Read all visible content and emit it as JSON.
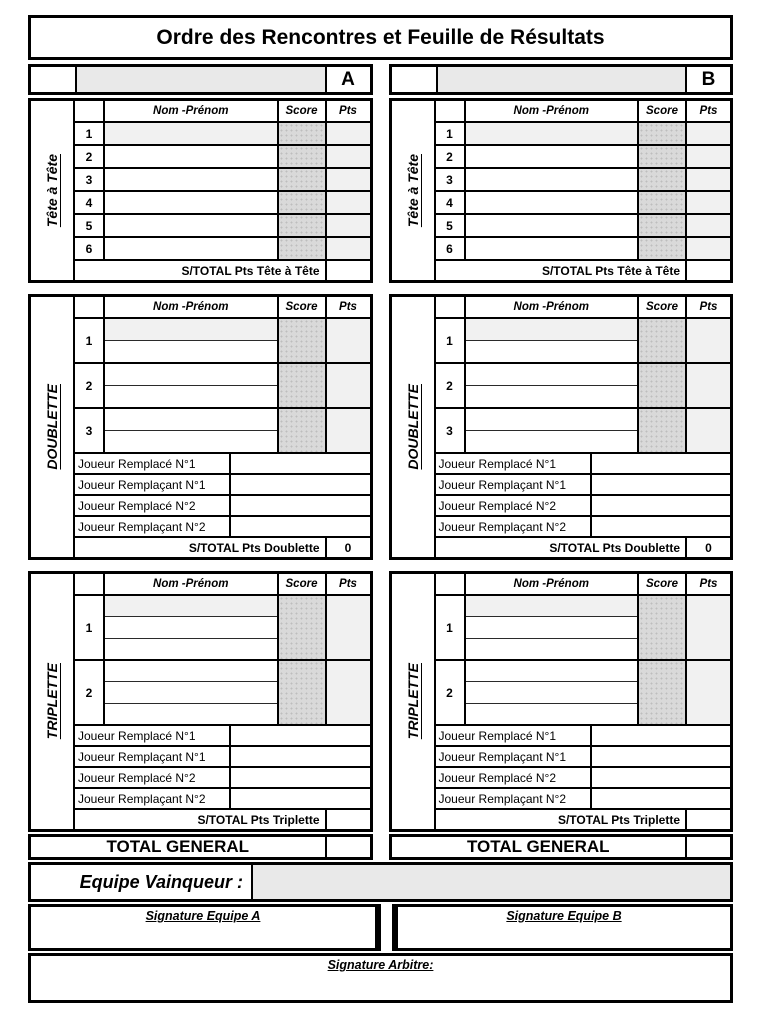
{
  "title": "Ordre des Rencontres et Feuille de Résultats",
  "headers": {
    "name": "Nom -Prénom",
    "score": "Score",
    "pts": "Pts"
  },
  "nums": [
    "1",
    "2",
    "3",
    "4",
    "5",
    "6"
  ],
  "sections": {
    "tete": {
      "title": "Tête à Tête",
      "subtotal_label": "S/TOTAL Pts Tête à Tête"
    },
    "doublette": {
      "title": "DOUBLETTE",
      "subtotal_label": "S/TOTAL Pts Doublette"
    },
    "triplette": {
      "title": "TRIPLETTE",
      "subtotal_label": "S/TOTAL Pts Triplette"
    }
  },
  "replacements": [
    "Joueur Remplacé N°1",
    "Joueur Remplaçant N°1",
    "Joueur Remplacé N°2",
    "Joueur Remplaçant N°2"
  ],
  "total_general_label": "TOTAL GENERAL",
  "teams": {
    "a": {
      "letter": "A",
      "name": "",
      "tete_subtotal": "",
      "doublette_subtotal": "0",
      "triplette_subtotal": "",
      "total_general": ""
    },
    "b": {
      "letter": "B",
      "name": "",
      "tete_subtotal": "",
      "doublette_subtotal": "0",
      "triplette_subtotal": "",
      "total_general": ""
    }
  },
  "winner": {
    "label": "Equipe Vainqueur :",
    "value": ""
  },
  "signatures": {
    "team_a": "Signature Equipe A",
    "team_b": "Signature Equipe B",
    "referee": "Signature Arbitre:"
  },
  "colors": {
    "score_fill": "#d9d9d9",
    "pts_fill": "#f1f1f1",
    "field_fill": "#e9e9e9",
    "line": "#000000"
  }
}
